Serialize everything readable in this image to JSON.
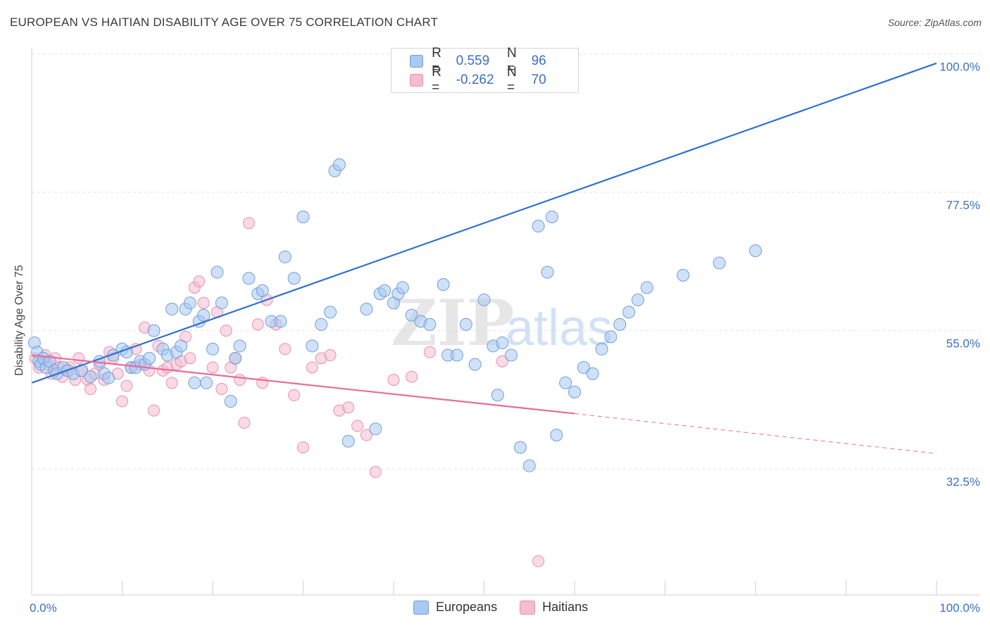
{
  "title": "EUROPEAN VS HAITIAN DISABILITY AGE OVER 75 CORRELATION CHART",
  "source": "Source: ZipAtlas.com",
  "watermark": {
    "zip": "ZIP",
    "atlas": "atlas"
  },
  "legend": {
    "r_label": "R =",
    "n_label": "N =",
    "europeans": {
      "r": "0.559",
      "n": "96"
    },
    "haitians": {
      "r": "-0.262",
      "n": "70"
    }
  },
  "bottom_legend": {
    "europeans": "Europeans",
    "haitians": "Haitians"
  },
  "colors": {
    "europeans_fill": "#aac8f0",
    "europeans_stroke": "#6f9fdc",
    "europeans_line": "#2e6fd0",
    "haitians_fill": "#f6bcd0",
    "haitians_stroke": "#e98fb0",
    "haitians_line": "#e86c98",
    "tick_text": "#3b6fc4",
    "grid": "#e2e2e2"
  },
  "chart_data": {
    "type": "scatter",
    "title": "EUROPEAN VS HAITIAN DISABILITY AGE OVER 75 CORRELATION CHART",
    "xlabel": "",
    "ylabel": "Disability Age Over 75",
    "xlim": [
      0,
      100
    ],
    "ylim": [
      12,
      101
    ],
    "x_tick_labels": [
      "0.0%",
      "100.0%"
    ],
    "y_ticks": [
      32.5,
      55.0,
      77.5,
      100.0
    ],
    "y_tick_labels": [
      "32.5%",
      "55.0%",
      "77.5%",
      "100.0%"
    ],
    "grid": true,
    "legend_position": "top-center",
    "series": [
      {
        "name": "Europeans",
        "r": 0.559,
        "n": 96,
        "trend": [
          [
            0,
            46.5
          ],
          [
            100,
            98.5
          ]
        ],
        "points": [
          [
            0.3,
            53
          ],
          [
            0.6,
            51.5
          ],
          [
            0.8,
            50
          ],
          [
            1,
            49.5
          ],
          [
            1.3,
            50.5
          ],
          [
            1.6,
            49
          ],
          [
            2,
            50
          ],
          [
            2.5,
            48.5
          ],
          [
            2.8,
            48
          ],
          [
            3.5,
            49
          ],
          [
            4,
            48.5
          ],
          [
            4.6,
            48
          ],
          [
            5.5,
            48.5
          ],
          [
            6.5,
            47.5
          ],
          [
            7.5,
            50
          ],
          [
            8,
            48
          ],
          [
            8.5,
            47.3
          ],
          [
            9,
            51
          ],
          [
            10,
            52
          ],
          [
            10.5,
            51.5
          ],
          [
            11,
            49
          ],
          [
            11.5,
            49
          ],
          [
            12,
            50
          ],
          [
            12.5,
            49.5
          ],
          [
            13,
            50.5
          ],
          [
            13.5,
            55
          ],
          [
            14.5,
            52
          ],
          [
            15,
            51
          ],
          [
            15.5,
            58.5
          ],
          [
            16,
            51.5
          ],
          [
            16.5,
            52.5
          ],
          [
            17,
            58.5
          ],
          [
            17.5,
            59.5
          ],
          [
            18,
            46.5
          ],
          [
            18.5,
            56.5
          ],
          [
            19,
            57.5
          ],
          [
            19.3,
            46.5
          ],
          [
            20,
            52
          ],
          [
            20.5,
            64.5
          ],
          [
            21,
            59.5
          ],
          [
            22,
            43.5
          ],
          [
            22.5,
            50.5
          ],
          [
            23,
            52.5
          ],
          [
            24,
            63.5
          ],
          [
            25,
            61
          ],
          [
            25.5,
            61.5
          ],
          [
            26.5,
            56.5
          ],
          [
            27.5,
            56.5
          ],
          [
            28,
            67
          ],
          [
            29,
            63.5
          ],
          [
            30,
            73.5
          ],
          [
            31,
            52.5
          ],
          [
            32,
            56
          ],
          [
            33,
            58
          ],
          [
            33.5,
            81
          ],
          [
            34,
            82
          ],
          [
            35,
            37
          ],
          [
            37,
            58.5
          ],
          [
            38,
            39
          ],
          [
            38.5,
            61
          ],
          [
            39,
            61.5
          ],
          [
            40,
            59.5
          ],
          [
            40.5,
            61
          ],
          [
            41,
            62
          ],
          [
            42,
            57.5
          ],
          [
            43,
            56.5
          ],
          [
            44,
            56
          ],
          [
            45.5,
            62.5
          ],
          [
            46,
            51
          ],
          [
            47,
            51
          ],
          [
            48,
            56
          ],
          [
            49,
            49.5
          ],
          [
            50,
            60
          ],
          [
            51,
            52.5
          ],
          [
            51.5,
            44.5
          ],
          [
            52,
            53
          ],
          [
            53,
            51
          ],
          [
            54,
            36
          ],
          [
            55,
            33
          ],
          [
            56,
            72
          ],
          [
            57,
            64.5
          ],
          [
            57.5,
            73.5
          ],
          [
            58,
            38
          ],
          [
            59,
            46.5
          ],
          [
            60,
            45
          ],
          [
            61,
            49
          ],
          [
            62,
            48
          ],
          [
            63,
            52
          ],
          [
            64,
            54
          ],
          [
            65,
            56
          ],
          [
            66,
            58
          ],
          [
            67,
            60
          ],
          [
            68,
            62
          ],
          [
            72,
            64
          ],
          [
            76,
            66
          ],
          [
            80,
            68
          ]
        ]
      },
      {
        "name": "Haitians",
        "r": -0.262,
        "n": 70,
        "trend": [
          [
            0,
            51
          ],
          [
            60,
            41.5
          ]
        ],
        "trend_dashed": [
          [
            60,
            41.5
          ],
          [
            100,
            35
          ]
        ],
        "points": [
          [
            0.4,
            50.5
          ],
          [
            0.8,
            49
          ],
          [
            1.2,
            50
          ],
          [
            1.5,
            51
          ],
          [
            1.8,
            49.5
          ],
          [
            2.2,
            48
          ],
          [
            2.6,
            50.5
          ],
          [
            3,
            49
          ],
          [
            3.4,
            47.5
          ],
          [
            3.8,
            48.5
          ],
          [
            4.2,
            49
          ],
          [
            4.8,
            47
          ],
          [
            5.2,
            50.5
          ],
          [
            5.6,
            48.5
          ],
          [
            6.2,
            47
          ],
          [
            6.5,
            45.5
          ],
          [
            7,
            48
          ],
          [
            7.5,
            49.5
          ],
          [
            8,
            47
          ],
          [
            8.6,
            51.5
          ],
          [
            9,
            50.5
          ],
          [
            9.5,
            48
          ],
          [
            10,
            43.5
          ],
          [
            10.5,
            46
          ],
          [
            11,
            49
          ],
          [
            11.5,
            52
          ],
          [
            12,
            49.5
          ],
          [
            12.5,
            55.5
          ],
          [
            13,
            48.5
          ],
          [
            13.5,
            42
          ],
          [
            14,
            52.5
          ],
          [
            14.5,
            48.5
          ],
          [
            15,
            49
          ],
          [
            15.5,
            46.5
          ],
          [
            16,
            49.5
          ],
          [
            16.5,
            50
          ],
          [
            17,
            54
          ],
          [
            17.5,
            50.5
          ],
          [
            18,
            62
          ],
          [
            18.5,
            63
          ],
          [
            19,
            59.5
          ],
          [
            20,
            49
          ],
          [
            20.5,
            58
          ],
          [
            21,
            45.5
          ],
          [
            21.5,
            55
          ],
          [
            22,
            49
          ],
          [
            22.5,
            50.5
          ],
          [
            23,
            47
          ],
          [
            23.5,
            40
          ],
          [
            24,
            72.5
          ],
          [
            25,
            56
          ],
          [
            25.5,
            46.5
          ],
          [
            26,
            60
          ],
          [
            27,
            56
          ],
          [
            28,
            52
          ],
          [
            29,
            44.5
          ],
          [
            30,
            36
          ],
          [
            31,
            49
          ],
          [
            32,
            50.5
          ],
          [
            33,
            51
          ],
          [
            34,
            42
          ],
          [
            35,
            42.5
          ],
          [
            36,
            39.5
          ],
          [
            37,
            38
          ],
          [
            38,
            32
          ],
          [
            40,
            47
          ],
          [
            42,
            47.5
          ],
          [
            44,
            51.5
          ],
          [
            52,
            50
          ],
          [
            56,
            17.5
          ]
        ]
      }
    ]
  }
}
